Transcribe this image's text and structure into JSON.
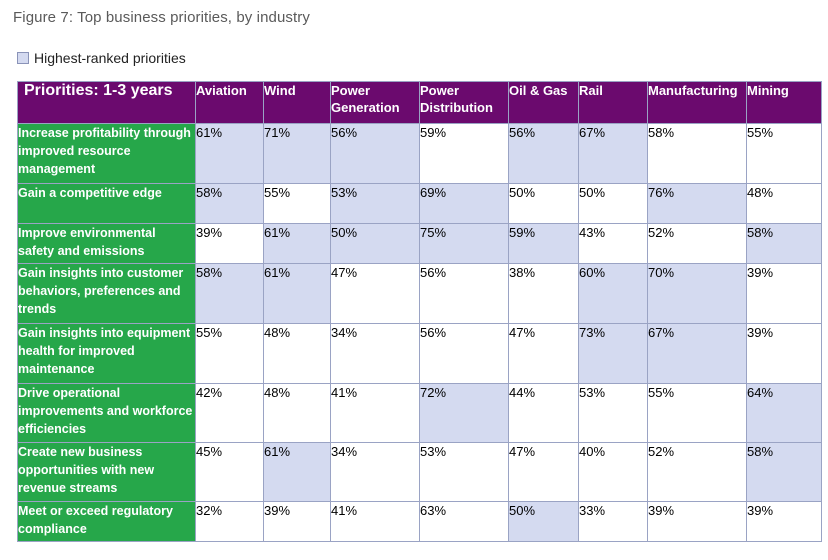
{
  "figure": {
    "title": "Figure 7: Top business priorities, by industry"
  },
  "legend": {
    "label": "Highest-ranked priorities",
    "swatch_color": "#d4daf0"
  },
  "colors": {
    "header_bg": "#6b0a6e",
    "row_header_bg": "#26a74a",
    "highlight_bg": "#d4daf0"
  },
  "table": {
    "corner_label": "Priorities: 1-3 years",
    "columns": [
      "Aviation",
      "Wind",
      "Power Generation",
      "Power Distribution",
      "Oil & Gas",
      "Rail",
      "Manufacturing",
      "Mining"
    ],
    "rows": [
      {
        "label": "Increase profitability through improved resource management",
        "values": [
          "61%",
          "71%",
          "56%",
          "59%",
          "56%",
          "67%",
          "58%",
          "55%"
        ],
        "highlighted": [
          true,
          true,
          true,
          false,
          true,
          true,
          false,
          false
        ]
      },
      {
        "label": "Gain a competitive edge",
        "values": [
          "58%",
          "55%",
          "53%",
          "69%",
          "50%",
          "50%",
          "76%",
          "48%"
        ],
        "highlighted": [
          true,
          false,
          true,
          true,
          false,
          false,
          true,
          false
        ]
      },
      {
        "label": "Improve environmental safety and emissions",
        "values": [
          "39%",
          "61%",
          "50%",
          "75%",
          "59%",
          "43%",
          "52%",
          "58%"
        ],
        "highlighted": [
          false,
          true,
          true,
          true,
          true,
          false,
          false,
          true
        ]
      },
      {
        "label": "Gain insights into customer behaviors, preferences and trends",
        "values": [
          "58%",
          "61%",
          "47%",
          "56%",
          "38%",
          "60%",
          "70%",
          "39%"
        ],
        "highlighted": [
          true,
          true,
          false,
          false,
          false,
          true,
          true,
          false
        ]
      },
      {
        "label": "Gain insights into equipment health for improved maintenance",
        "values": [
          "55%",
          "48%",
          "34%",
          "56%",
          "47%",
          "73%",
          "67%",
          "39%"
        ],
        "highlighted": [
          false,
          false,
          false,
          false,
          false,
          true,
          true,
          false
        ]
      },
      {
        "label": "Drive operational improvements and workforce efficiencies",
        "values": [
          "42%",
          "48%",
          "41%",
          "72%",
          "44%",
          "53%",
          "55%",
          "64%"
        ],
        "highlighted": [
          false,
          false,
          false,
          true,
          false,
          false,
          false,
          true
        ]
      },
      {
        "label": "Create new business opportunities with new revenue streams",
        "values": [
          "45%",
          "61%",
          "34%",
          "53%",
          "47%",
          "40%",
          "52%",
          "58%"
        ],
        "highlighted": [
          false,
          true,
          false,
          false,
          false,
          false,
          false,
          true
        ]
      },
      {
        "label": "Meet or exceed regulatory compliance",
        "values": [
          "32%",
          "39%",
          "41%",
          "63%",
          "50%",
          "33%",
          "39%",
          "39%"
        ],
        "highlighted": [
          false,
          false,
          false,
          false,
          true,
          false,
          false,
          false
        ]
      }
    ]
  }
}
